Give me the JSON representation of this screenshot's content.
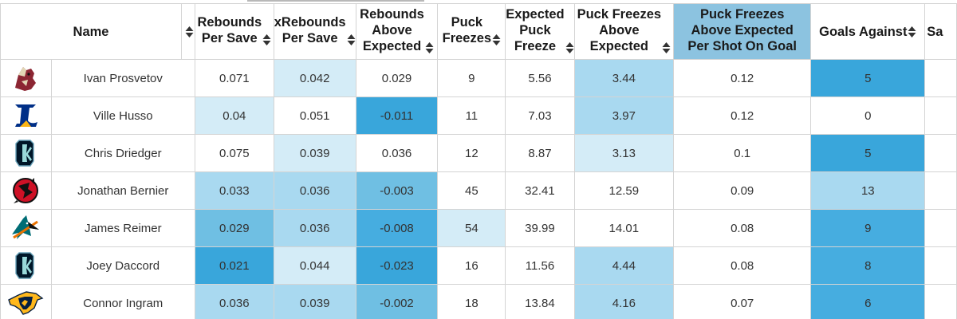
{
  "columns": {
    "name": "Name",
    "rebounds_per_save": [
      "Rebounds",
      "Per Save"
    ],
    "xrebounds_per_save": [
      "xRebounds",
      "Per Save"
    ],
    "rebounds_above_expected": [
      "Rebounds",
      "Above",
      "Expected"
    ],
    "puck_freezes": [
      "Puck",
      "Freezes"
    ],
    "expected_puck_freeze": [
      "Expected",
      "Puck",
      "Freeze"
    ],
    "puck_freezes_above_expected": [
      "Puck Freezes",
      "Above",
      "Expected"
    ],
    "pfae_per_shot_on_goal": [
      "Puck Freezes",
      "Above Expected",
      "Per Shot On Goal"
    ],
    "goals_against": "Goals Against",
    "saves": "Sa"
  },
  "sorted_column": "pfae_per_shot_on_goal",
  "colors": {
    "sorted_header": "#8cc3e0",
    "heat_levels": [
      "#ffffff",
      "#d4ecf7",
      "#a9d9f0",
      "#6fbfe3",
      "#46ade0",
      "#39a6db"
    ]
  },
  "rows": [
    {
      "team_logo": "coyotes-logo-icon",
      "name": "Ivan Prosvetov",
      "rebounds_per_save": "0.071",
      "rebounds_per_save_heat": 0,
      "xrebounds_per_save": "0.042",
      "xrebounds_per_save_heat": 1,
      "rebounds_above_expected": "0.029",
      "rebounds_above_expected_heat": 0,
      "puck_freezes": "9",
      "puck_freezes_heat": 0,
      "expected_puck_freeze": "5.56",
      "expected_puck_freeze_heat": 0,
      "puck_freezes_above_expected": "3.44",
      "puck_freezes_above_expected_heat": 2,
      "pfae_per_shot_on_goal": "0.12",
      "pfae_per_shot_on_goal_heat": 0,
      "goals_against": "5",
      "goals_against_heat": 5
    },
    {
      "team_logo": "blues-logo-icon",
      "name": "Ville Husso",
      "rebounds_per_save": "0.04",
      "rebounds_per_save_heat": 1,
      "xrebounds_per_save": "0.051",
      "xrebounds_per_save_heat": 0,
      "rebounds_above_expected": "-0.011",
      "rebounds_above_expected_heat": 5,
      "puck_freezes": "11",
      "puck_freezes_heat": 0,
      "expected_puck_freeze": "7.03",
      "expected_puck_freeze_heat": 0,
      "puck_freezes_above_expected": "3.97",
      "puck_freezes_above_expected_heat": 2,
      "pfae_per_shot_on_goal": "0.12",
      "pfae_per_shot_on_goal_heat": 0,
      "goals_against": "0",
      "goals_against_heat": 0
    },
    {
      "team_logo": "kraken-logo-icon",
      "name": "Chris Driedger",
      "rebounds_per_save": "0.075",
      "rebounds_per_save_heat": 0,
      "xrebounds_per_save": "0.039",
      "xrebounds_per_save_heat": 1,
      "rebounds_above_expected": "0.036",
      "rebounds_above_expected_heat": 0,
      "puck_freezes": "12",
      "puck_freezes_heat": 0,
      "expected_puck_freeze": "8.87",
      "expected_puck_freeze_heat": 0,
      "puck_freezes_above_expected": "3.13",
      "puck_freezes_above_expected_heat": 1,
      "pfae_per_shot_on_goal": "0.1",
      "pfae_per_shot_on_goal_heat": 0,
      "goals_against": "5",
      "goals_against_heat": 5
    },
    {
      "team_logo": "devils-logo-icon",
      "name": "Jonathan Bernier",
      "rebounds_per_save": "0.033",
      "rebounds_per_save_heat": 2,
      "xrebounds_per_save": "0.036",
      "xrebounds_per_save_heat": 2,
      "rebounds_above_expected": "-0.003",
      "rebounds_above_expected_heat": 3,
      "puck_freezes": "45",
      "puck_freezes_heat": 0,
      "expected_puck_freeze": "32.41",
      "expected_puck_freeze_heat": 0,
      "puck_freezes_above_expected": "12.59",
      "puck_freezes_above_expected_heat": 0,
      "pfae_per_shot_on_goal": "0.09",
      "pfae_per_shot_on_goal_heat": 0,
      "goals_against": "13",
      "goals_against_heat": 2
    },
    {
      "team_logo": "sharks-logo-icon",
      "name": "James Reimer",
      "rebounds_per_save": "0.029",
      "rebounds_per_save_heat": 3,
      "xrebounds_per_save": "0.036",
      "xrebounds_per_save_heat": 2,
      "rebounds_above_expected": "-0.008",
      "rebounds_above_expected_heat": 4,
      "puck_freezes": "54",
      "puck_freezes_heat": 1,
      "expected_puck_freeze": "39.99",
      "expected_puck_freeze_heat": 0,
      "puck_freezes_above_expected": "14.01",
      "puck_freezes_above_expected_heat": 0,
      "pfae_per_shot_on_goal": "0.08",
      "pfae_per_shot_on_goal_heat": 0,
      "goals_against": "9",
      "goals_against_heat": 4
    },
    {
      "team_logo": "kraken-logo-icon",
      "name": "Joey Daccord",
      "rebounds_per_save": "0.021",
      "rebounds_per_save_heat": 5,
      "xrebounds_per_save": "0.044",
      "xrebounds_per_save_heat": 1,
      "rebounds_above_expected": "-0.023",
      "rebounds_above_expected_heat": 5,
      "puck_freezes": "16",
      "puck_freezes_heat": 0,
      "expected_puck_freeze": "11.56",
      "expected_puck_freeze_heat": 0,
      "puck_freezes_above_expected": "4.44",
      "puck_freezes_above_expected_heat": 2,
      "pfae_per_shot_on_goal": "0.08",
      "pfae_per_shot_on_goal_heat": 0,
      "goals_against": "8",
      "goals_against_heat": 4
    },
    {
      "team_logo": "predators-logo-icon",
      "name": "Connor Ingram",
      "rebounds_per_save": "0.036",
      "rebounds_per_save_heat": 2,
      "xrebounds_per_save": "0.039",
      "xrebounds_per_save_heat": 2,
      "rebounds_above_expected": "-0.002",
      "rebounds_above_expected_heat": 3,
      "puck_freezes": "18",
      "puck_freezes_heat": 0,
      "expected_puck_freeze": "13.84",
      "expected_puck_freeze_heat": 0,
      "puck_freezes_above_expected": "4.16",
      "puck_freezes_above_expected_heat": 2,
      "pfae_per_shot_on_goal": "0.07",
      "pfae_per_shot_on_goal_heat": 0,
      "goals_against": "6",
      "goals_against_heat": 4
    }
  ]
}
